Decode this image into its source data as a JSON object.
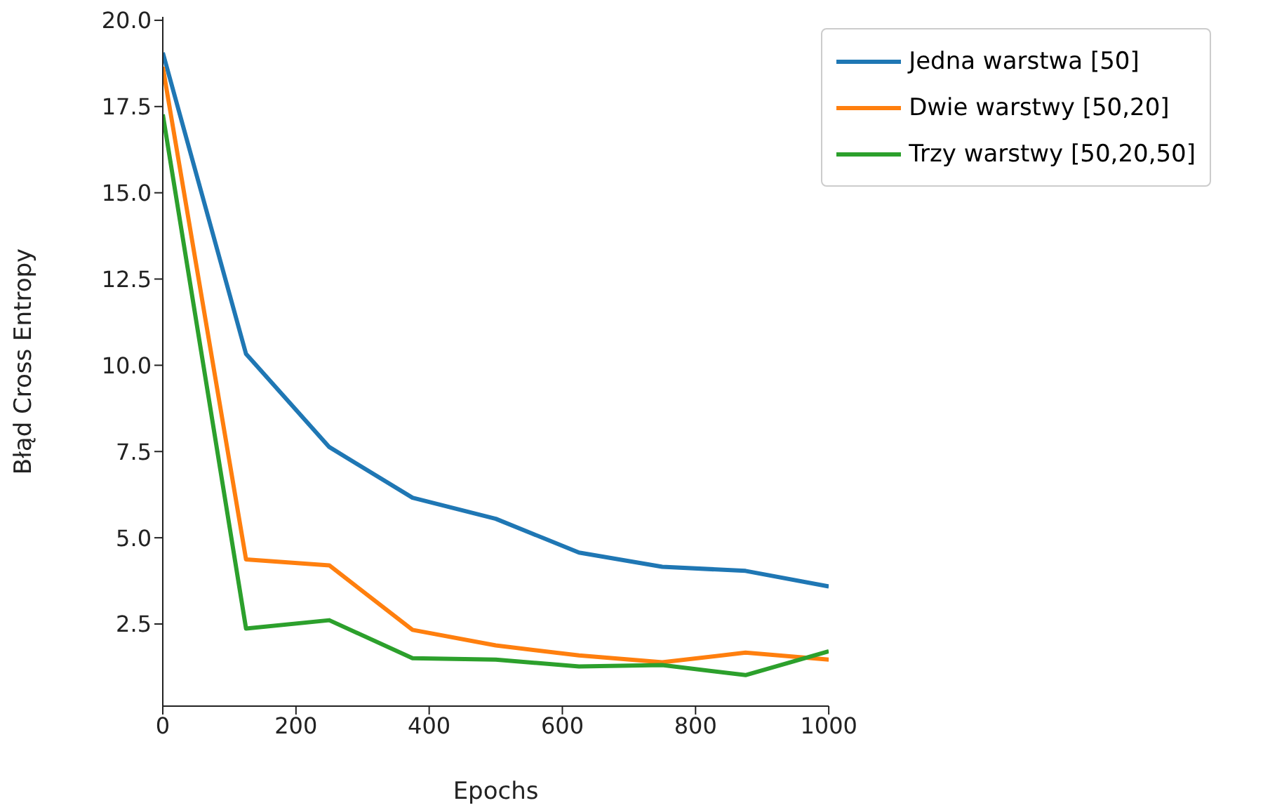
{
  "chart_data": {
    "type": "line",
    "xlabel": "Epochs",
    "ylabel": "Błąd Cross Entropy",
    "x": [
      0,
      125,
      250,
      375,
      500,
      625,
      750,
      875,
      1000
    ],
    "series": [
      {
        "name": "Jedna warstwa [50]",
        "color": "#1f77b4",
        "values": [
          19.06,
          10.33,
          7.63,
          6.16,
          5.55,
          4.57,
          4.16,
          4.04,
          3.59
        ]
      },
      {
        "name": "Dwie warstwy [50,20]",
        "color": "#ff7f0e",
        "values": [
          18.65,
          4.37,
          4.2,
          2.33,
          1.88,
          1.59,
          1.39,
          1.67,
          1.47
        ]
      },
      {
        "name": "Trzy warstwy [50,20,50]",
        "color": "#2ca02c",
        "values": [
          17.27,
          2.37,
          2.61,
          1.51,
          1.47,
          1.27,
          1.31,
          1.02,
          1.71
        ]
      }
    ],
    "xlim": [
      0,
      1000
    ],
    "xticks": [
      0,
      200,
      400,
      600,
      800,
      1000
    ],
    "ylim": [
      0.12,
      20.1
    ],
    "yticks": [
      {
        "value": 2.5,
        "label": "2.5"
      },
      {
        "value": 5,
        "label": "5.0"
      },
      {
        "value": 7.5,
        "label": "7.5"
      },
      {
        "value": 10,
        "label": "10.0"
      },
      {
        "value": 12.5,
        "label": "12.5"
      },
      {
        "value": 15,
        "label": "15.0"
      },
      {
        "value": 17.5,
        "label": "17.5"
      },
      {
        "value": 20,
        "label": "20.0"
      }
    ],
    "grid": false,
    "legend": "top right",
    "marker": "none",
    "line_style": "solid"
  }
}
